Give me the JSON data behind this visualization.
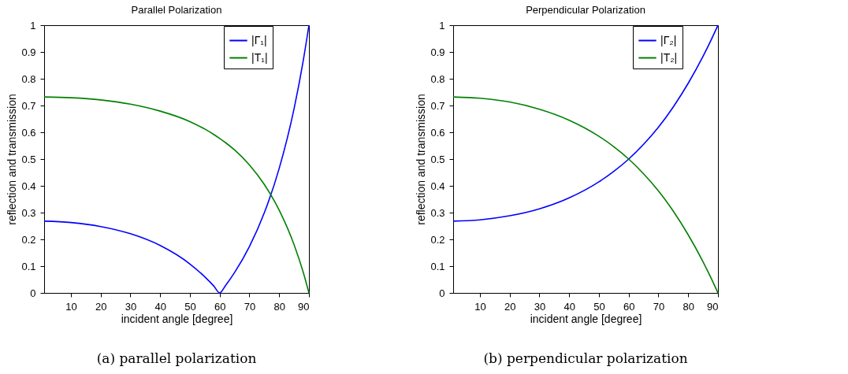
{
  "chart_data": [
    {
      "type": "line",
      "title": "Parallel Polarization",
      "xlabel": "incident angle [degree]",
      "ylabel": "reflection and transmission",
      "xlim": [
        1,
        90
      ],
      "xticks": [
        10,
        20,
        30,
        40,
        50,
        60,
        70,
        80,
        90
      ],
      "ylim": [
        0,
        1
      ],
      "yticks": [
        0,
        0.1,
        0.2,
        0.3,
        0.4,
        0.5,
        0.6,
        0.7,
        0.8,
        0.9,
        1
      ],
      "legend": "top right",
      "grid": false,
      "annotations": [
        "(a) parallel polarization"
      ],
      "x": [
        1,
        10,
        20,
        30,
        40,
        50,
        55,
        58,
        60,
        62,
        65,
        70,
        75,
        80,
        85,
        88,
        90
      ],
      "series": [
        {
          "name": "|Γ₁|",
          "color": "#0000ff",
          "values": [
            0.268,
            0.263,
            0.248,
            0.221,
            0.177,
            0.108,
            0.06,
            0.026,
            0,
            0.028,
            0.076,
            0.173,
            0.299,
            0.465,
            0.688,
            0.862,
            1
          ]
        },
        {
          "name": "|T₁|",
          "color": "#008000",
          "values": [
            0.732,
            0.729,
            0.721,
            0.705,
            0.679,
            0.64,
            0.612,
            0.592,
            0.577,
            0.561,
            0.534,
            0.478,
            0.405,
            0.309,
            0.18,
            0.08,
            0
          ]
        }
      ]
    },
    {
      "type": "line",
      "title": "Perpendicular Polarization",
      "xlabel": "incident angle [degree]",
      "ylabel": "reflection and transmission",
      "xlim": [
        1,
        90
      ],
      "xticks": [
        10,
        20,
        30,
        40,
        50,
        60,
        70,
        80,
        90
      ],
      "ylim": [
        0,
        1
      ],
      "yticks": [
        0,
        0.1,
        0.2,
        0.3,
        0.4,
        0.5,
        0.6,
        0.7,
        0.8,
        0.9,
        1
      ],
      "legend": "top right",
      "grid": false,
      "annotations": [
        "(b) perpendicular polarization"
      ],
      "x": [
        1,
        10,
        20,
        30,
        40,
        50,
        55,
        60,
        65,
        70,
        75,
        80,
        85,
        88,
        90
      ],
      "series": [
        {
          "name": "|Γ₂|",
          "color": "#0000ff",
          "values": [
            0.268,
            0.273,
            0.288,
            0.314,
            0.355,
            0.415,
            0.454,
            0.5,
            0.555,
            0.619,
            0.695,
            0.783,
            0.884,
            0.952,
            1
          ]
        },
        {
          "name": "|T₂|",
          "color": "#008000",
          "values": [
            0.732,
            0.727,
            0.713,
            0.686,
            0.645,
            0.585,
            0.546,
            0.5,
            0.445,
            0.381,
            0.305,
            0.217,
            0.116,
            0.048,
            0
          ]
        }
      ]
    }
  ]
}
